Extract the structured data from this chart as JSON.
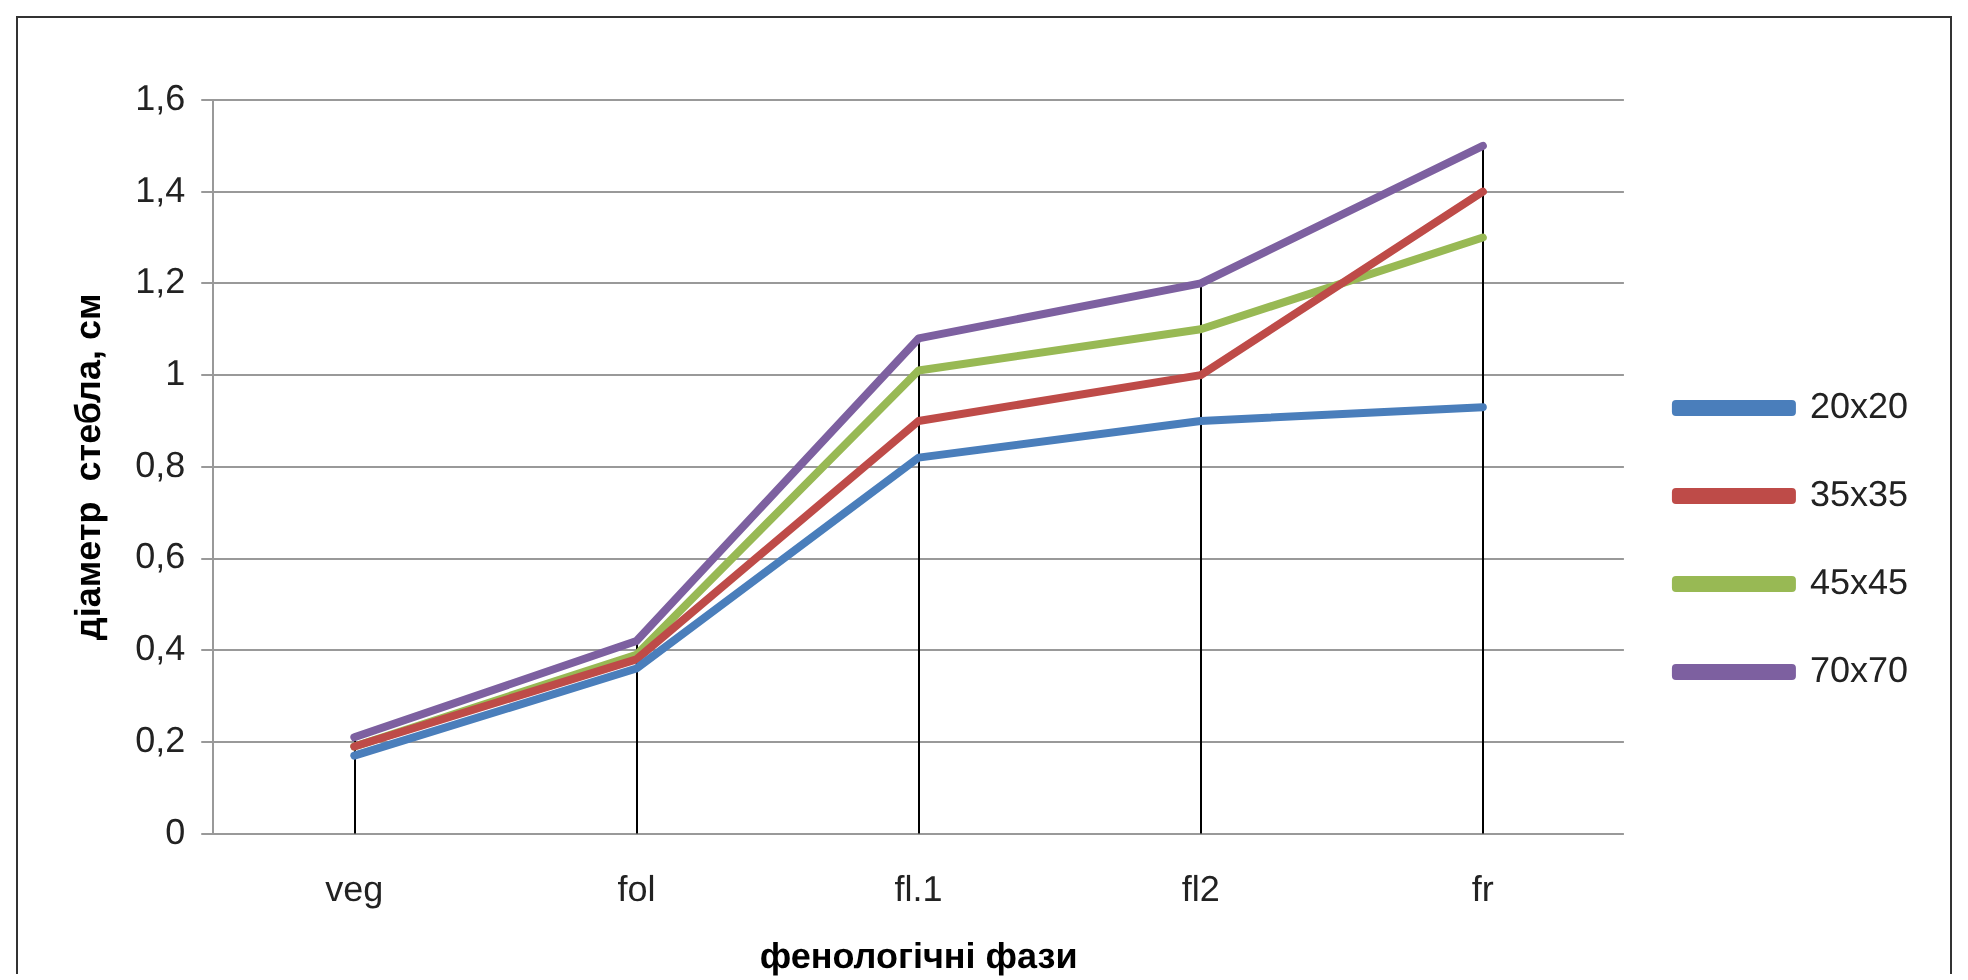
{
  "chart_data": {
    "type": "line",
    "xlabel": "фенологічні фази",
    "ylabel": "діаметр  стебла, см",
    "categories": [
      "veg",
      "fol",
      "fl.1",
      "fl2",
      "fr"
    ],
    "series": [
      {
        "name": "20x20",
        "color": "#4a7ebb",
        "values": [
          0.17,
          0.36,
          0.82,
          0.9,
          0.93
        ]
      },
      {
        "name": "35x35",
        "color": "#be4b48",
        "values": [
          0.19,
          0.38,
          0.9,
          1.0,
          1.4
        ]
      },
      {
        "name": "45x45",
        "color": "#98b954",
        "values": [
          0.19,
          0.39,
          1.01,
          1.1,
          1.3
        ]
      },
      {
        "name": "70x70",
        "color": "#7d60a0",
        "values": [
          0.21,
          0.42,
          1.08,
          1.2,
          1.5
        ]
      }
    ],
    "ylim": [
      0,
      1.6
    ],
    "yticks": [
      {
        "value": 0,
        "label": "0"
      },
      {
        "value": 0.2,
        "label": "0,2"
      },
      {
        "value": 0.4,
        "label": "0,4"
      },
      {
        "value": 0.6,
        "label": "0,6"
      },
      {
        "value": 0.8,
        "label": "0,8"
      },
      {
        "value": 1,
        "label": "1"
      },
      {
        "value": 1.2,
        "label": "1,2"
      },
      {
        "value": 1.4,
        "label": "1,4"
      },
      {
        "value": 1.6,
        "label": "1,6"
      }
    ],
    "ref_lines": [
      {
        "axis": "x",
        "value": "veg",
        "color": "#000000"
      },
      {
        "axis": "x",
        "value": "fol",
        "color": "#000000"
      },
      {
        "axis": "x",
        "value": "fl.1",
        "color": "#000000"
      },
      {
        "axis": "x",
        "value": "fl2",
        "color": "#000000"
      },
      {
        "axis": "x",
        "value": "fr",
        "color": "#000000"
      }
    ],
    "grid": "y",
    "legend": "right",
    "marker": "none",
    "line_style": "solid"
  }
}
